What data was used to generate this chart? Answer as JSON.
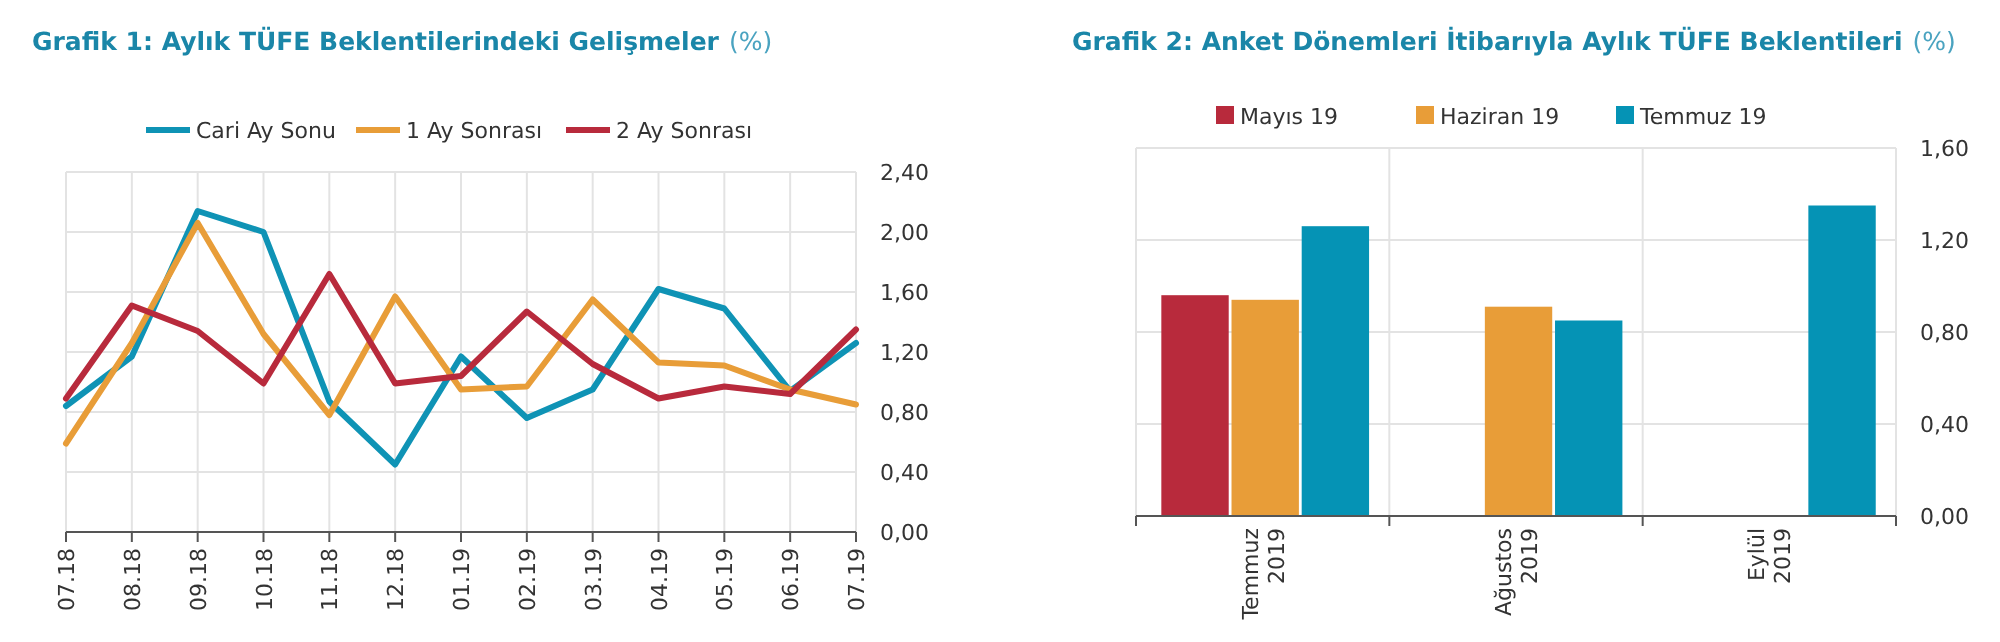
{
  "chart_data": [
    {
      "type": "line",
      "title": "Grafik 1: Aylık TÜFE Beklentilerindeki Gelişmeler",
      "subtitle": "(%)",
      "categories": [
        "07.18",
        "08.18",
        "09.18",
        "10.18",
        "11.18",
        "12.18",
        "01.19",
        "02.19",
        "03.19",
        "04.19",
        "05.19",
        "06.19",
        "07.19"
      ],
      "series": [
        {
          "name": "Cari Ay Sonu",
          "color": "#0f93b5",
          "values": [
            0.84,
            1.17,
            2.14,
            2.0,
            0.87,
            0.45,
            1.17,
            0.76,
            0.95,
            1.62,
            1.49,
            0.94,
            1.26
          ]
        },
        {
          "name": "1 Ay Sonrası",
          "color": "#e89d38",
          "values": [
            0.59,
            1.26,
            2.06,
            1.32,
            0.78,
            1.57,
            0.95,
            0.97,
            1.55,
            1.13,
            1.11,
            0.95,
            0.85
          ]
        },
        {
          "name": "2 Ay Sonrası",
          "color": "#b82a3c",
          "values": [
            0.89,
            1.51,
            1.34,
            0.99,
            1.72,
            0.99,
            1.04,
            1.47,
            1.12,
            0.89,
            0.97,
            0.92,
            1.35
          ]
        }
      ],
      "ylim": [
        0,
        2.4
      ],
      "yticks": [
        {
          "value": 0,
          "label": "0,00"
        },
        {
          "value": 0.4,
          "label": "0,40"
        },
        {
          "value": 0.8,
          "label": "0,80"
        },
        {
          "value": 1.2,
          "label": "1,20"
        },
        {
          "value": 1.6,
          "label": "1,60"
        },
        {
          "value": 2.0,
          "label": "2,00"
        },
        {
          "value": 2.4,
          "label": "2,40"
        }
      ],
      "grid": true,
      "legend": "top",
      "line_style": "solid",
      "marker": "none"
    },
    {
      "type": "bar",
      "title": "Grafik 2: Anket Dönemleri İtibarıyla Aylık TÜFE Beklentileri",
      "subtitle": "(%)",
      "categories": [
        "Temmuz 2019",
        "Ağustos 2019",
        "Eylül 2019"
      ],
      "series": [
        {
          "name": "Mayıs 19",
          "color": "#b82a3c",
          "values": [
            0.96,
            null,
            null
          ]
        },
        {
          "name": "Haziran 19",
          "color": "#e89d38",
          "values": [
            0.94,
            0.91,
            null
          ]
        },
        {
          "name": "Temmuz 19",
          "color": "#0593b5",
          "values": [
            1.26,
            0.85,
            1.35
          ]
        }
      ],
      "ylim": [
        0,
        1.6
      ],
      "yticks": [
        {
          "value": 0,
          "label": "0,00"
        },
        {
          "value": 0.4,
          "label": "0,40"
        },
        {
          "value": 0.8,
          "label": "0,80"
        },
        {
          "value": 1.2,
          "label": "1,20"
        },
        {
          "value": 1.6,
          "label": "1,60"
        }
      ],
      "grid": true,
      "legend": "top"
    }
  ]
}
